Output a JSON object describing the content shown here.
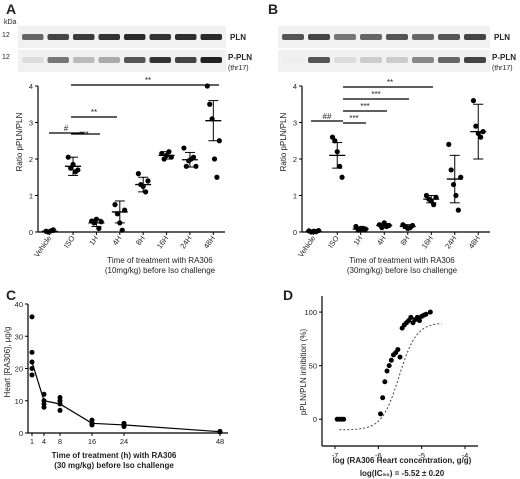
{
  "panels": {
    "a": {
      "letter": "A",
      "kda": "kDa",
      "mw_top": "12",
      "mw_bottom": "12",
      "band_pln": "PLN",
      "band_ppln": "P-PLN",
      "band_ppln_sub": "(thr17)",
      "title_line1": "Time of treatment with RA306",
      "title_line2": "(10mg/kg) before Iso challenge",
      "ylabel": "Ratio pPLN/PLN",
      "sig_hash": "#",
      "sig_1h": "***",
      "sig_4h": "**",
      "sig_48h": "**"
    },
    "b": {
      "letter": "B",
      "band_pln": "PLN",
      "band_ppln": "P-PLN",
      "band_ppln_sub": "(thr17)",
      "title_line1": "Time of treatment with RA306",
      "title_line2": "(30mg/kg) before Iso challenge",
      "ylabel": "Ratio pPLN/PLN",
      "sig_hash": "##",
      "sig_1h": "***",
      "sig_4h": "***",
      "sig_8h": "***",
      "sig_16h": "**"
    },
    "c": {
      "letter": "C",
      "ylabel": "Heart [RA306], µg/g",
      "xlabel_line1": "Time of treatment (h) with RA306",
      "xlabel_line2": "(30 mg/kg)  before Iso challenge"
    },
    "d": {
      "letter": "D",
      "ylabel": "pPLN/PLN inhibition (%)",
      "xlabel": "log (RA306 Heart concentration, g/g)",
      "ic50": "log(IC₅₀) = -5.52 ± 0.20"
    }
  },
  "chart_data": [
    {
      "type": "scatter",
      "panel": "A",
      "categories": [
        "Vehicle",
        "ISO",
        "1H",
        "4H",
        "8H",
        "16H",
        "24H",
        "48H"
      ],
      "ylabel": "Ratio pPLN/PLN",
      "xlabel": "Time of treatment with RA306 (10mg/kg) before Iso challenge",
      "ylim": [
        0,
        4
      ],
      "yticks": [
        0,
        1,
        2,
        3,
        4
      ],
      "points": [
        [
          0.02,
          0.0,
          0.03,
          0.06
        ],
        [
          2.05,
          1.75,
          1.85,
          1.65,
          1.7
        ],
        [
          0.3,
          0.25,
          0.35,
          0.1,
          0.28
        ],
        [
          0.75,
          0.5,
          0.25,
          0.05,
          0.6
        ],
        [
          1.6,
          1.3,
          1.25,
          1.1,
          1.4
        ],
        [
          2.15,
          2.0,
          2.1,
          2.2,
          2.05
        ],
        [
          2.3,
          1.8,
          1.95,
          2.0,
          2.05,
          1.8
        ],
        [
          4.0,
          3.5,
          3.1,
          2.0,
          1.5,
          2.5
        ]
      ],
      "mean": [
        0.02,
        1.8,
        0.25,
        0.55,
        1.3,
        2.1,
        1.98,
        3.05
      ],
      "sd": [
        0.03,
        0.25,
        0.1,
        0.3,
        0.2,
        0.1,
        0.2,
        0.55
      ]
    },
    {
      "type": "scatter",
      "panel": "B",
      "categories": [
        "Vehicle",
        "ISO",
        "1H",
        "4H",
        "8H",
        "16H",
        "24H",
        "48H"
      ],
      "ylabel": "Ratio pPLN/PLN",
      "xlabel": "Time of treatment with RA306 (30mg/kg) before Iso challenge",
      "ylim": [
        0,
        4
      ],
      "yticks": [
        0,
        1,
        2,
        3,
        4
      ],
      "points": [
        [
          0.03,
          0.0,
          0.02,
          0.01,
          0.04
        ],
        [
          2.6,
          2.5,
          2.2,
          1.8,
          1.5
        ],
        [
          0.15,
          0.05,
          0.1,
          0.1,
          0.08
        ],
        [
          0.2,
          0.12,
          0.25,
          0.15,
          0.18
        ],
        [
          0.2,
          0.15,
          0.1,
          0.12,
          0.18
        ],
        [
          1.0,
          0.9,
          0.85,
          0.75,
          0.95
        ],
        [
          2.4,
          1.7,
          1.3,
          1.0,
          0.6,
          1.5
        ],
        [
          3.6,
          2.9,
          2.7,
          2.6,
          2.75
        ]
      ],
      "mean": [
        0.02,
        2.1,
        0.08,
        0.18,
        0.15,
        0.9,
        1.45,
        2.75
      ],
      "sd": [
        0.02,
        0.35,
        0.05,
        0.05,
        0.05,
        0.1,
        0.65,
        0.75
      ]
    },
    {
      "type": "line",
      "panel": "C",
      "xlabel": "Time of treatment (h) with RA306 (30 mg/kg)  before Iso challenge",
      "ylabel": "Heart [RA306], µg/g",
      "xticks": [
        1,
        4,
        8,
        16,
        24,
        48
      ],
      "yticks": [
        0,
        10,
        20,
        30,
        40
      ],
      "xlim": [
        0,
        50
      ],
      "ylim": [
        0,
        40
      ],
      "points": [
        [
          1,
          36
        ],
        [
          1,
          25
        ],
        [
          1,
          20
        ],
        [
          1,
          18
        ],
        [
          1,
          22
        ],
        [
          4,
          12
        ],
        [
          4,
          10
        ],
        [
          4,
          8
        ],
        [
          4,
          9
        ],
        [
          8,
          11
        ],
        [
          8,
          10
        ],
        [
          8,
          9
        ],
        [
          8,
          7
        ],
        [
          16,
          4
        ],
        [
          16,
          3
        ],
        [
          16,
          2.5
        ],
        [
          24,
          3
        ],
        [
          24,
          2
        ],
        [
          24,
          2.5
        ],
        [
          48,
          0.5
        ],
        [
          48,
          0.3
        ]
      ],
      "mean_line": [
        [
          1,
          22
        ],
        [
          4,
          10
        ],
        [
          8,
          9
        ],
        [
          16,
          3
        ],
        [
          24,
          2.5
        ],
        [
          48,
          0.4
        ]
      ]
    },
    {
      "type": "scatter",
      "panel": "D",
      "xlabel": "log (RA306 Heart concentration, g/g)",
      "ylabel": "pPLN/PLN inhibition (%)",
      "xticks": [
        -7,
        -6,
        -5,
        -4
      ],
      "yticks": [
        0,
        50,
        100
      ],
      "xlim": [
        -7.3,
        -3.7
      ],
      "ylim": [
        -25,
        115
      ],
      "points": [
        [
          -6.95,
          0
        ],
        [
          -6.9,
          0
        ],
        [
          -6.85,
          0
        ],
        [
          -6.8,
          0
        ],
        [
          -5.95,
          5
        ],
        [
          -5.9,
          20
        ],
        [
          -5.85,
          35
        ],
        [
          -5.8,
          45
        ],
        [
          -5.75,
          50
        ],
        [
          -5.7,
          55
        ],
        [
          -5.65,
          60
        ],
        [
          -5.6,
          62
        ],
        [
          -5.55,
          65
        ],
        [
          -5.5,
          58
        ],
        [
          -5.45,
          85
        ],
        [
          -5.4,
          88
        ],
        [
          -5.35,
          90
        ],
        [
          -5.3,
          92
        ],
        [
          -5.25,
          95
        ],
        [
          -5.2,
          90
        ],
        [
          -5.15,
          93
        ],
        [
          -5.1,
          95
        ],
        [
          -5.05,
          92
        ],
        [
          -5.0,
          96
        ],
        [
          -4.95,
          97
        ],
        [
          -4.9,
          98
        ],
        [
          -4.8,
          100
        ]
      ],
      "fit_log_ic50": -5.52
    }
  ]
}
